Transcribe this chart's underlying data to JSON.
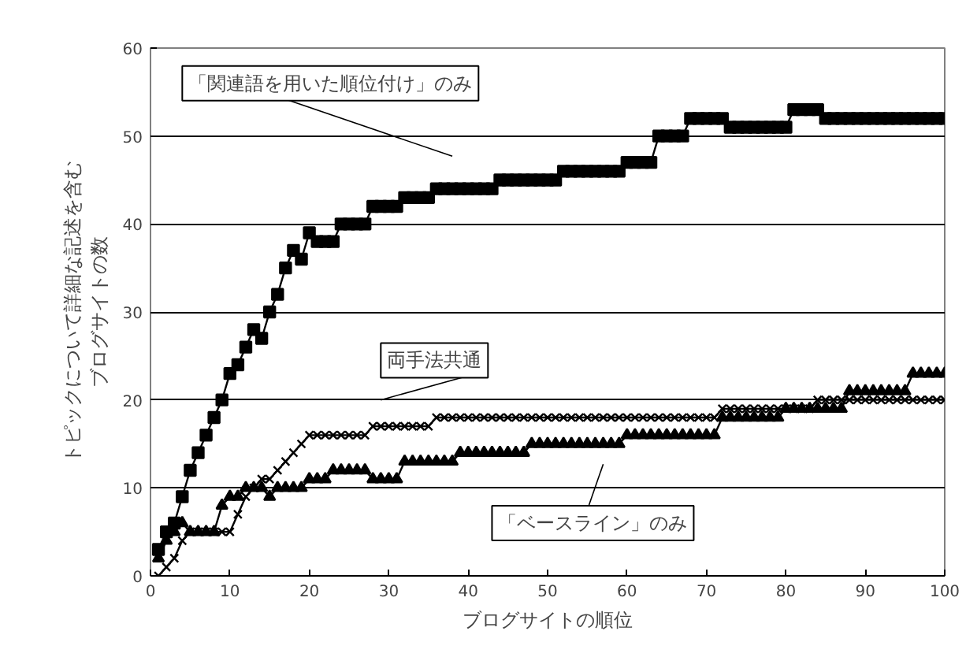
{
  "chart_data": {
    "type": "line",
    "xlabel": "ブログサイトの順位",
    "ylabel": "トピックについて詳細な記述を含むブログサイトの数",
    "x": [
      1,
      2,
      3,
      4,
      5,
      6,
      7,
      8,
      9,
      10,
      11,
      12,
      13,
      14,
      15,
      16,
      17,
      18,
      19,
      20,
      21,
      22,
      23,
      24,
      25,
      26,
      27,
      28,
      29,
      30,
      31,
      32,
      33,
      34,
      35,
      36,
      37,
      38,
      39,
      40,
      41,
      42,
      43,
      44,
      45,
      46,
      47,
      48,
      49,
      50,
      51,
      52,
      53,
      54,
      55,
      56,
      57,
      58,
      59,
      60,
      61,
      62,
      63,
      64,
      65,
      66,
      67,
      68,
      69,
      70,
      71,
      72,
      73,
      74,
      75,
      76,
      77,
      78,
      79,
      80,
      81,
      82,
      83,
      84,
      85,
      86,
      87,
      88,
      89,
      90,
      91,
      92,
      93,
      94,
      95,
      96,
      97,
      98,
      99,
      100
    ],
    "series": [
      {
        "color": "#000000",
        "marker": "square",
        "values": [
          3,
          5,
          6,
          9,
          12,
          14,
          16,
          18,
          20,
          23,
          24,
          26,
          28,
          27,
          30,
          32,
          35,
          37,
          36,
          39,
          38,
          38,
          38,
          40,
          40,
          40,
          40,
          42,
          42,
          42,
          42,
          43,
          43,
          43,
          43,
          44,
          44,
          44,
          44,
          44,
          44,
          44,
          44,
          45,
          45,
          45,
          45,
          45,
          45,
          45,
          45,
          46,
          46,
          46,
          46,
          46,
          46,
          46,
          46,
          47,
          47,
          47,
          47,
          50,
          50,
          50,
          50,
          52,
          52,
          52,
          52,
          52,
          51,
          51,
          51,
          51,
          51,
          51,
          51,
          51,
          53,
          53,
          53,
          53,
          52,
          52,
          52,
          52,
          52,
          52,
          52,
          52,
          52,
          52,
          52,
          52,
          52,
          52,
          52,
          52
        ]
      },
      {
        "color": "#000000",
        "marker": "triangle",
        "values": [
          2,
          4,
          5,
          6,
          5,
          5,
          5,
          5,
          8,
          9,
          9,
          10,
          10,
          10,
          9,
          10,
          10,
          10,
          10,
          11,
          11,
          11,
          12,
          12,
          12,
          12,
          12,
          11,
          11,
          11,
          11,
          13,
          13,
          13,
          13,
          13,
          13,
          13,
          14,
          14,
          14,
          14,
          14,
          14,
          14,
          14,
          14,
          15,
          15,
          15,
          15,
          15,
          15,
          15,
          15,
          15,
          15,
          15,
          15,
          16,
          16,
          16,
          16,
          16,
          16,
          16,
          16,
          16,
          16,
          16,
          16,
          18,
          18,
          18,
          18,
          18,
          18,
          18,
          18,
          19,
          19,
          19,
          19,
          19,
          19,
          19,
          19,
          21,
          21,
          21,
          21,
          21,
          21,
          21,
          21,
          23,
          23,
          23,
          23,
          23
        ]
      },
      {
        "color": "#000000",
        "marker": "cross",
        "values": [
          0,
          1,
          2,
          4,
          5,
          5,
          5,
          5,
          5,
          5,
          7,
          9,
          10,
          11,
          11,
          12,
          13,
          14,
          15,
          16,
          16,
          16,
          16,
          16,
          16,
          16,
          16,
          17,
          17,
          17,
          17,
          17,
          17,
          17,
          17,
          18,
          18,
          18,
          18,
          18,
          18,
          18,
          18,
          18,
          18,
          18,
          18,
          18,
          18,
          18,
          18,
          18,
          18,
          18,
          18,
          18,
          18,
          18,
          18,
          18,
          18,
          18,
          18,
          18,
          18,
          18,
          18,
          18,
          18,
          18,
          18,
          19,
          19,
          19,
          19,
          19,
          19,
          19,
          19,
          19,
          19,
          19,
          19,
          20,
          20,
          20,
          20,
          20,
          20,
          20,
          20,
          20,
          20,
          20,
          20,
          20,
          20,
          20,
          20,
          20
        ]
      }
    ],
    "xlim": [
      0,
      100
    ],
    "ylim": [
      0,
      60
    ],
    "xticks": [
      0,
      10,
      20,
      30,
      40,
      50,
      60,
      70,
      80,
      90,
      100
    ],
    "yticks": [
      0,
      10,
      20,
      30,
      40,
      50,
      60
    ],
    "grid": "y",
    "annotations": [
      "「関連語を用いた順位付け」のみ",
      "両手法共通",
      "「ベースライン」のみ"
    ]
  }
}
